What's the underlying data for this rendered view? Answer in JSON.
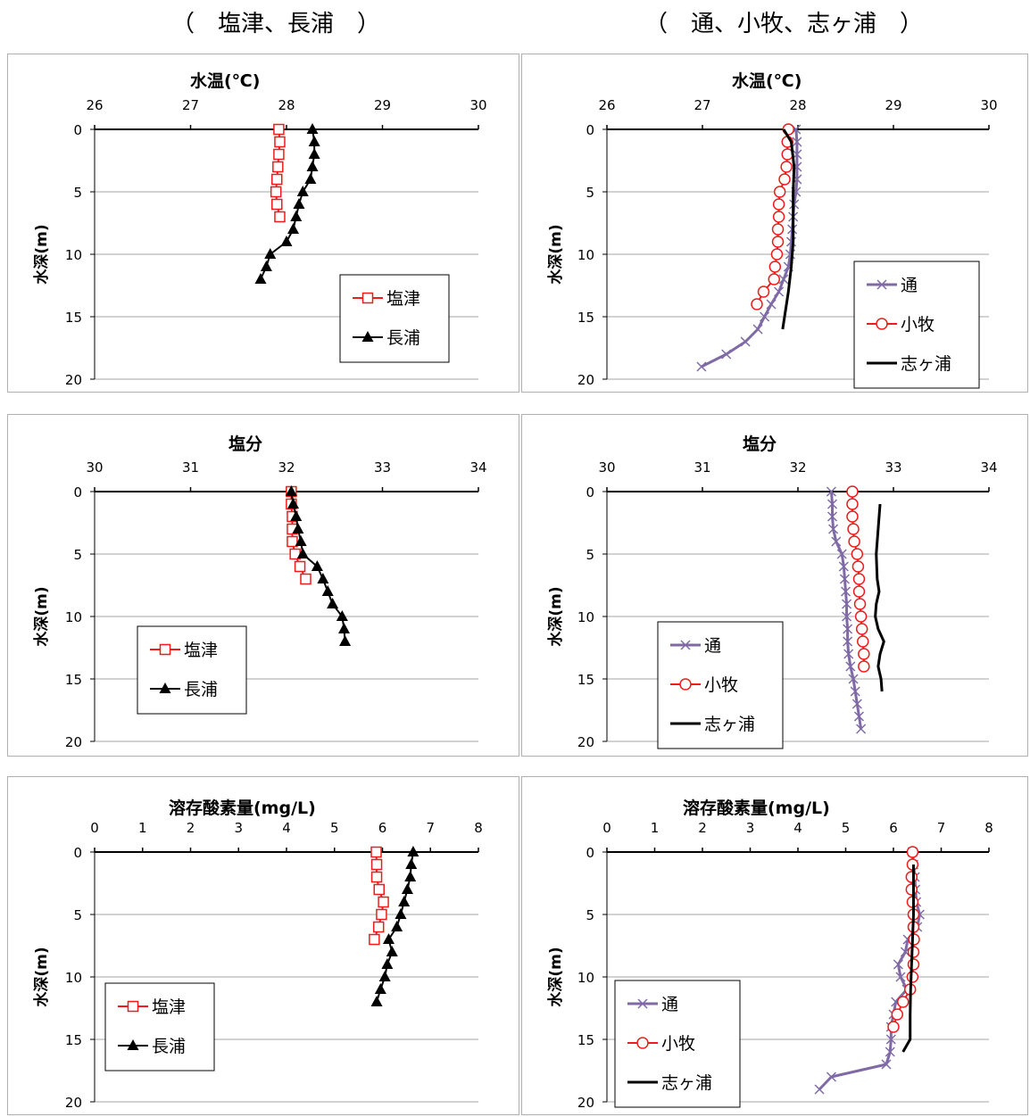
{
  "headers": {
    "left": "（　塩津、長浦　）",
    "right": "（　通、小牧、志ヶ浦　）"
  },
  "colors": {
    "red": "#ee1c1c",
    "black": "#000000",
    "purple": "#7f6aa6",
    "grid": "#a6a6a6",
    "frame": "#b0b0b0"
  },
  "chart_data": [
    {
      "type": "line",
      "title": "水温(℃)",
      "ylabel": "水深(m)",
      "xlim": [
        26,
        30
      ],
      "xticks": [
        "26",
        "27",
        "28",
        "29",
        "30"
      ],
      "ylim": [
        0,
        20
      ],
      "yticks": [
        "0",
        "5",
        "10",
        "15",
        "20"
      ],
      "grid": true,
      "legend": "bottom-right",
      "series": [
        {
          "name": "塩津",
          "style": "red-square",
          "points": [
            [
              27.92,
              0
            ],
            [
              27.93,
              1
            ],
            [
              27.92,
              2
            ],
            [
              27.91,
              3
            ],
            [
              27.9,
              4
            ],
            [
              27.89,
              5
            ],
            [
              27.9,
              6
            ],
            [
              27.93,
              7
            ]
          ]
        },
        {
          "name": "長浦",
          "style": "black-triangle",
          "points": [
            [
              28.27,
              0
            ],
            [
              28.29,
              1
            ],
            [
              28.29,
              2
            ],
            [
              28.27,
              3
            ],
            [
              28.25,
              4
            ],
            [
              28.17,
              5
            ],
            [
              28.13,
              6
            ],
            [
              28.1,
              7
            ],
            [
              28.07,
              8
            ],
            [
              28.0,
              9
            ],
            [
              27.83,
              10
            ],
            [
              27.79,
              11
            ],
            [
              27.73,
              12
            ]
          ]
        }
      ]
    },
    {
      "type": "line",
      "title": "水温(℃)",
      "ylabel": "水深(m)",
      "xlim": [
        26,
        30
      ],
      "xticks": [
        "26",
        "27",
        "28",
        "29",
        "30"
      ],
      "ylim": [
        0,
        20
      ],
      "yticks": [
        "0",
        "5",
        "10",
        "15",
        "20"
      ],
      "grid": true,
      "legend": "bottom-right",
      "series": [
        {
          "name": "通",
          "style": "purple-x",
          "points": [
            [
              27.98,
              0
            ],
            [
              27.99,
              1
            ],
            [
              27.99,
              2
            ],
            [
              27.99,
              3
            ],
            [
              27.99,
              4
            ],
            [
              27.98,
              5
            ],
            [
              27.96,
              6
            ],
            [
              27.95,
              7
            ],
            [
              27.94,
              8
            ],
            [
              27.93,
              9
            ],
            [
              27.92,
              10
            ],
            [
              27.9,
              11
            ],
            [
              27.85,
              12
            ],
            [
              27.8,
              13
            ],
            [
              27.72,
              14
            ],
            [
              27.65,
              15
            ],
            [
              27.58,
              16
            ],
            [
              27.45,
              17
            ],
            [
              27.25,
              18
            ],
            [
              26.99,
              19
            ]
          ]
        },
        {
          "name": "小牧",
          "style": "red-circle",
          "points": [
            [
              27.9,
              0
            ],
            [
              27.89,
              1
            ],
            [
              27.89,
              2
            ],
            [
              27.88,
              3
            ],
            [
              27.86,
              4
            ],
            [
              27.81,
              5
            ],
            [
              27.8,
              6
            ],
            [
              27.8,
              7
            ],
            [
              27.79,
              8
            ],
            [
              27.79,
              9
            ],
            [
              27.78,
              10
            ],
            [
              27.76,
              11
            ],
            [
              27.75,
              12
            ],
            [
              27.64,
              13
            ],
            [
              27.57,
              14
            ]
          ]
        },
        {
          "name": "志ヶ浦",
          "style": "black-line",
          "points": [
            [
              27.85,
              0
            ],
            [
              27.93,
              1
            ],
            [
              27.96,
              3
            ],
            [
              27.95,
              5
            ],
            [
              27.95,
              7
            ],
            [
              27.95,
              9
            ],
            [
              27.93,
              11
            ],
            [
              27.9,
              13
            ],
            [
              27.86,
              15
            ],
            [
              27.84,
              16
            ]
          ]
        }
      ]
    },
    {
      "type": "line",
      "title": "塩分",
      "ylabel": "水深(m)",
      "xlim": [
        30,
        34
      ],
      "xticks": [
        "30",
        "31",
        "32",
        "33",
        "34"
      ],
      "ylim": [
        0,
        20
      ],
      "yticks": [
        "0",
        "5",
        "10",
        "15",
        "20"
      ],
      "grid": true,
      "legend": "bottom-left",
      "series": [
        {
          "name": "塩津",
          "style": "red-square",
          "points": [
            [
              32.05,
              0
            ],
            [
              32.05,
              1
            ],
            [
              32.06,
              2
            ],
            [
              32.06,
              3
            ],
            [
              32.06,
              4
            ],
            [
              32.09,
              5
            ],
            [
              32.14,
              6
            ],
            [
              32.2,
              7
            ]
          ]
        },
        {
          "name": "長浦",
          "style": "black-triangle",
          "points": [
            [
              32.05,
              0
            ],
            [
              32.07,
              1
            ],
            [
              32.1,
              2
            ],
            [
              32.12,
              3
            ],
            [
              32.15,
              4
            ],
            [
              32.17,
              5
            ],
            [
              32.32,
              6
            ],
            [
              32.38,
              7
            ],
            [
              32.43,
              8
            ],
            [
              32.48,
              9
            ],
            [
              32.58,
              10
            ],
            [
              32.6,
              11
            ],
            [
              32.61,
              12
            ]
          ]
        }
      ]
    },
    {
      "type": "line",
      "title": "塩分",
      "ylabel": "水深(m)",
      "xlim": [
        30,
        34
      ],
      "xticks": [
        "30",
        "31",
        "32",
        "33",
        "34"
      ],
      "ylim": [
        0,
        20
      ],
      "yticks": [
        "0",
        "5",
        "10",
        "15",
        "20"
      ],
      "grid": true,
      "legend": "bottom-left",
      "series": [
        {
          "name": "通",
          "style": "purple-x",
          "points": [
            [
              32.35,
              0
            ],
            [
              32.36,
              1
            ],
            [
              32.36,
              2
            ],
            [
              32.37,
              3
            ],
            [
              32.4,
              4
            ],
            [
              32.46,
              5
            ],
            [
              32.48,
              6
            ],
            [
              32.49,
              7
            ],
            [
              32.5,
              8
            ],
            [
              32.51,
              9
            ],
            [
              32.51,
              10
            ],
            [
              32.52,
              11
            ],
            [
              32.52,
              12
            ],
            [
              32.53,
              13
            ],
            [
              32.55,
              14
            ],
            [
              32.58,
              15
            ],
            [
              32.6,
              16
            ],
            [
              32.62,
              17
            ],
            [
              32.64,
              18
            ],
            [
              32.66,
              19
            ]
          ]
        },
        {
          "name": "小牧",
          "style": "red-circle",
          "points": [
            [
              32.57,
              0
            ],
            [
              32.57,
              1
            ],
            [
              32.57,
              2
            ],
            [
              32.58,
              3
            ],
            [
              32.59,
              4
            ],
            [
              32.62,
              5
            ],
            [
              32.63,
              6
            ],
            [
              32.64,
              7
            ],
            [
              32.64,
              8
            ],
            [
              32.65,
              9
            ],
            [
              32.66,
              10
            ],
            [
              32.67,
              11
            ],
            [
              32.68,
              12
            ],
            [
              32.69,
              13
            ],
            [
              32.69,
              14
            ]
          ]
        },
        {
          "name": "志ヶ浦",
          "style": "black-line",
          "points": [
            [
              32.86,
              1
            ],
            [
              32.84,
              3
            ],
            [
              32.82,
              5
            ],
            [
              32.83,
              7
            ],
            [
              32.85,
              8
            ],
            [
              32.82,
              9
            ],
            [
              32.81,
              10
            ],
            [
              32.84,
              11
            ],
            [
              32.9,
              12
            ],
            [
              32.86,
              13
            ],
            [
              32.84,
              14
            ],
            [
              32.87,
              15
            ],
            [
              32.88,
              16
            ]
          ]
        }
      ]
    },
    {
      "type": "line",
      "title": "溶存酸素量(mg/L)",
      "ylabel": "水深(m)",
      "xlim": [
        0,
        8
      ],
      "xticks": [
        "0",
        "1",
        "2",
        "3",
        "4",
        "5",
        "6",
        "7",
        "8"
      ],
      "ylim": [
        0,
        20
      ],
      "yticks": [
        "0",
        "5",
        "10",
        "15",
        "20"
      ],
      "grid": true,
      "legend": "bottom-left",
      "series": [
        {
          "name": "塩津",
          "style": "red-square",
          "points": [
            [
              5.87,
              0
            ],
            [
              5.88,
              1
            ],
            [
              5.88,
              2
            ],
            [
              5.93,
              3
            ],
            [
              6.02,
              4
            ],
            [
              5.98,
              5
            ],
            [
              5.92,
              6
            ],
            [
              5.83,
              7
            ]
          ]
        },
        {
          "name": "長浦",
          "style": "black-triangle",
          "points": [
            [
              6.64,
              0
            ],
            [
              6.6,
              1
            ],
            [
              6.58,
              2
            ],
            [
              6.52,
              3
            ],
            [
              6.45,
              4
            ],
            [
              6.38,
              5
            ],
            [
              6.3,
              6
            ],
            [
              6.13,
              7
            ],
            [
              6.2,
              8
            ],
            [
              6.1,
              9
            ],
            [
              6.05,
              10
            ],
            [
              5.96,
              11
            ],
            [
              5.88,
              12
            ]
          ]
        }
      ]
    },
    {
      "type": "line",
      "title": "溶存酸素量(mg/L)",
      "ylabel": "水深(m)",
      "xlim": [
        0,
        8
      ],
      "xticks": [
        "0",
        "1",
        "2",
        "3",
        "4",
        "5",
        "6",
        "7",
        "8"
      ],
      "ylim": [
        0,
        20
      ],
      "yticks": [
        "0",
        "5",
        "10",
        "15",
        "20"
      ],
      "grid": true,
      "legend": "bottom-left",
      "series": [
        {
          "name": "通",
          "style": "purple-x",
          "points": [
            [
              6.4,
              0
            ],
            [
              6.42,
              1
            ],
            [
              6.45,
              2
            ],
            [
              6.46,
              3
            ],
            [
              6.48,
              4
            ],
            [
              6.55,
              5
            ],
            [
              6.5,
              6
            ],
            [
              6.3,
              7
            ],
            [
              6.25,
              8
            ],
            [
              6.1,
              9
            ],
            [
              6.15,
              10
            ],
            [
              6.28,
              11
            ],
            [
              6.05,
              12
            ],
            [
              6.0,
              13
            ],
            [
              5.95,
              14
            ],
            [
              5.95,
              15
            ],
            [
              5.93,
              16
            ],
            [
              5.85,
              17
            ],
            [
              4.7,
              18
            ],
            [
              4.45,
              19
            ]
          ]
        },
        {
          "name": "小牧",
          "style": "red-circle",
          "points": [
            [
              6.4,
              0
            ],
            [
              6.4,
              1
            ],
            [
              6.38,
              2
            ],
            [
              6.38,
              3
            ],
            [
              6.4,
              4
            ],
            [
              6.42,
              5
            ],
            [
              6.42,
              6
            ],
            [
              6.43,
              7
            ],
            [
              6.42,
              8
            ],
            [
              6.42,
              9
            ],
            [
              6.4,
              10
            ],
            [
              6.35,
              11
            ],
            [
              6.2,
              12
            ],
            [
              6.08,
              13
            ],
            [
              6.0,
              14
            ]
          ]
        },
        {
          "name": "志ヶ浦",
          "style": "black-line",
          "points": [
            [
              6.42,
              1
            ],
            [
              6.42,
              3
            ],
            [
              6.42,
              5
            ],
            [
              6.4,
              7
            ],
            [
              6.38,
              9
            ],
            [
              6.36,
              11
            ],
            [
              6.35,
              13
            ],
            [
              6.35,
              15
            ],
            [
              6.2,
              16
            ]
          ]
        }
      ]
    }
  ]
}
